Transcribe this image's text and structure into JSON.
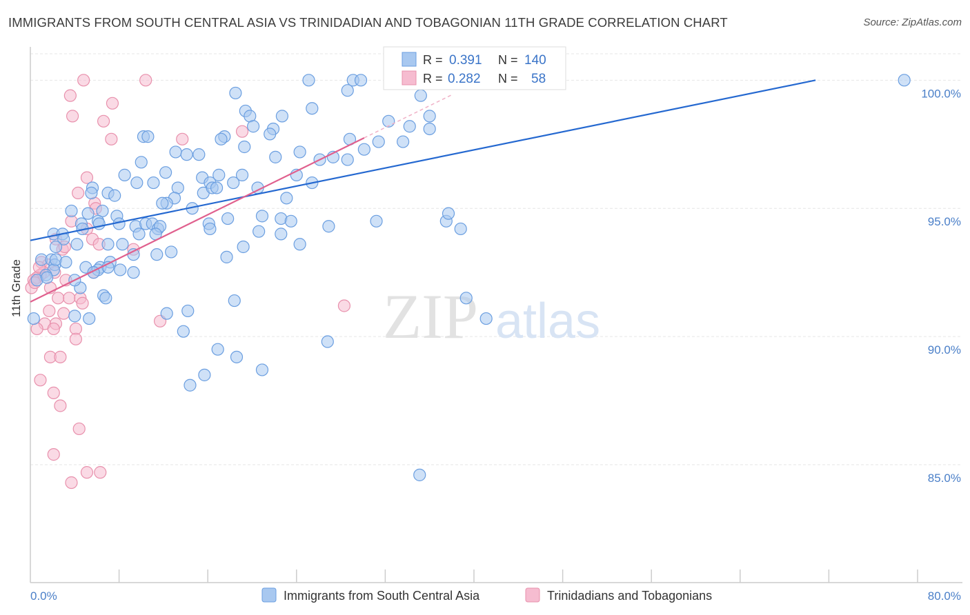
{
  "title": "IMMIGRANTS FROM SOUTH CENTRAL ASIA VS TRINIDADIAN AND TOBAGONIAN 11TH GRADE CORRELATION CHART",
  "source": "Source: ZipAtlas.com",
  "watermark": {
    "zip": "ZIP",
    "atlas": "atlas"
  },
  "colors": {
    "blue_fill": "#a8c8f0",
    "blue_stroke": "#6a9ee0",
    "blue_line": "#2468d0",
    "pink_fill": "#f6bcd0",
    "pink_stroke": "#e890ac",
    "pink_line": "#e0608e",
    "axis_label": "#4a7fc8",
    "grid": "#e6e6e6"
  },
  "legend_box": {
    "rows": [
      {
        "r_label": "R =",
        "r_value": "0.391",
        "n_label": "N =",
        "n_value": "140"
      },
      {
        "r_label": "R =",
        "r_value": "0.282",
        "n_label": "N =",
        "n_value": "58"
      }
    ]
  },
  "bottom_legend": {
    "items": [
      "Immigrants from South Central Asia",
      "Trinidadians and Tobagonians"
    ]
  },
  "chart_data": {
    "type": "scatter",
    "ylabel": "11th Grade",
    "xlim": [
      0,
      80
    ],
    "ylim": [
      80.4,
      101.3
    ],
    "x_tick_labels": {
      "left": "0.0%",
      "right": "80.0%"
    },
    "y_ticks": [
      {
        "value": 100,
        "label": "100.0%"
      },
      {
        "value": 95,
        "label": "95.0%"
      },
      {
        "value": 90,
        "label": "90.0%"
      },
      {
        "value": 85,
        "label": "85.0%"
      }
    ],
    "grid": true,
    "legend_placement": "top-center",
    "series": [
      {
        "name": "Immigrants from South Central Asia",
        "color": "#a8c8f0",
        "trend": {
          "x": [
            0,
            70.8
          ],
          "y": [
            93.75,
            100.0
          ]
        },
        "points": [
          [
            25.1,
            100
          ],
          [
            29.1,
            100
          ],
          [
            29.8,
            100
          ],
          [
            78.8,
            100
          ],
          [
            18.5,
            99.5
          ],
          [
            28.6,
            99.6
          ],
          [
            35.2,
            99.4
          ],
          [
            25.4,
            98.9
          ],
          [
            19.4,
            98.8
          ],
          [
            19.8,
            98.6
          ],
          [
            22.7,
            98.6
          ],
          [
            32.3,
            98.4
          ],
          [
            20.1,
            98.2
          ],
          [
            21.9,
            98.1
          ],
          [
            34.2,
            98.2
          ],
          [
            36.0,
            98.1
          ],
          [
            17.5,
            97.8
          ],
          [
            10.2,
            97.8
          ],
          [
            10.6,
            97.8
          ],
          [
            28.8,
            97.7
          ],
          [
            21.6,
            97.9
          ],
          [
            33.6,
            97.6
          ],
          [
            17.2,
            97.7
          ],
          [
            19.3,
            97.4
          ],
          [
            13.1,
            97.2
          ],
          [
            14.1,
            97.1
          ],
          [
            15.2,
            97.1
          ],
          [
            22.1,
            97.0
          ],
          [
            30.1,
            97.3
          ],
          [
            24.3,
            97.2
          ],
          [
            26.1,
            96.9
          ],
          [
            28.6,
            96.9
          ],
          [
            10.0,
            96.8
          ],
          [
            12.2,
            96.4
          ],
          [
            8.5,
            96.3
          ],
          [
            9.6,
            96.0
          ],
          [
            11.1,
            96.0
          ],
          [
            15.5,
            96.2
          ],
          [
            16.2,
            96.0
          ],
          [
            17.0,
            96.3
          ],
          [
            19.1,
            96.3
          ],
          [
            24.0,
            96.3
          ],
          [
            25.4,
            96.0
          ],
          [
            13.3,
            95.8
          ],
          [
            15.6,
            95.6
          ],
          [
            16.4,
            95.8
          ],
          [
            20.5,
            95.8
          ],
          [
            5.6,
            95.8
          ],
          [
            5.5,
            95.6
          ],
          [
            7.0,
            95.6
          ],
          [
            7.6,
            95.5
          ],
          [
            13.0,
            95.4
          ],
          [
            12.3,
            95.2
          ],
          [
            11.9,
            95.2
          ],
          [
            14.6,
            95.0
          ],
          [
            23.1,
            95.4
          ],
          [
            3.7,
            94.9
          ],
          [
            5.2,
            94.8
          ],
          [
            4.6,
            94.4
          ],
          [
            6.5,
            94.9
          ],
          [
            7.8,
            94.7
          ],
          [
            4.7,
            94.2
          ],
          [
            6.1,
            94.5
          ],
          [
            6.2,
            94.4
          ],
          [
            8.0,
            94.4
          ],
          [
            9.5,
            94.3
          ],
          [
            10.4,
            94.4
          ],
          [
            11.0,
            94.4
          ],
          [
            11.5,
            94.2
          ],
          [
            11.7,
            94.3
          ],
          [
            16.1,
            94.4
          ],
          [
            16.2,
            94.2
          ],
          [
            17.8,
            94.6
          ],
          [
            20.9,
            94.7
          ],
          [
            22.6,
            94.6
          ],
          [
            23.5,
            94.5
          ],
          [
            26.9,
            94.3
          ],
          [
            31.2,
            94.5
          ],
          [
            37.5,
            94.5
          ],
          [
            37.7,
            94.8
          ],
          [
            38.8,
            94.2
          ],
          [
            2.1,
            94.0
          ],
          [
            2.9,
            94.0
          ],
          [
            3.0,
            93.8
          ],
          [
            4.2,
            93.6
          ],
          [
            2.3,
            93.5
          ],
          [
            7.0,
            93.6
          ],
          [
            8.3,
            93.6
          ],
          [
            9.8,
            94.0
          ],
          [
            11.3,
            94.0
          ],
          [
            20.6,
            94.1
          ],
          [
            22.6,
            94.0
          ],
          [
            24.3,
            93.6
          ],
          [
            19.2,
            93.5
          ],
          [
            12.7,
            93.3
          ],
          [
            9.3,
            93.2
          ],
          [
            11.4,
            93.2
          ],
          [
            17.7,
            93.1
          ],
          [
            1.0,
            93.0
          ],
          [
            1.9,
            93.0
          ],
          [
            2.2,
            92.8
          ],
          [
            2.1,
            92.6
          ],
          [
            1.4,
            92.4
          ],
          [
            0.6,
            92.2
          ],
          [
            2.3,
            93.0
          ],
          [
            3.2,
            92.9
          ],
          [
            6.3,
            92.7
          ],
          [
            5.0,
            92.7
          ],
          [
            6.1,
            92.6
          ],
          [
            5.7,
            92.5
          ],
          [
            7.2,
            92.9
          ],
          [
            7.0,
            92.7
          ],
          [
            8.1,
            92.6
          ],
          [
            9.3,
            92.5
          ],
          [
            4.5,
            91.9
          ],
          [
            6.6,
            91.6
          ],
          [
            6.8,
            91.5
          ],
          [
            18.4,
            91.4
          ],
          [
            39.3,
            91.5
          ],
          [
            41.1,
            90.7
          ],
          [
            5.3,
            90.7
          ],
          [
            4.0,
            90.8
          ],
          [
            12.3,
            90.9
          ],
          [
            14.2,
            91.0
          ],
          [
            13.8,
            90.2
          ],
          [
            16.9,
            89.5
          ],
          [
            18.6,
            89.2
          ],
          [
            26.8,
            89.8
          ],
          [
            20.9,
            88.7
          ],
          [
            15.7,
            88.5
          ],
          [
            14.4,
            88.1
          ],
          [
            35.1,
            84.6
          ],
          [
            0.3,
            90.7
          ],
          [
            36.0,
            98.6
          ],
          [
            18.3,
            96.0
          ],
          [
            16.8,
            95.8
          ],
          [
            4.0,
            92.2
          ],
          [
            1.5,
            92.3
          ],
          [
            27.3,
            97.0
          ],
          [
            31.4,
            97.6
          ]
        ]
      },
      {
        "name": "Trinidadians and Tobagonians",
        "color": "#f6bcd0",
        "trend": {
          "x": [
            0,
            30.1
          ],
          "y": [
            91.35,
            97.75
          ]
        },
        "trend_ext": {
          "x": [
            30.1,
            38.1
          ],
          "y": [
            97.75,
            99.45
          ]
        },
        "points": [
          [
            4.8,
            100
          ],
          [
            10.4,
            100
          ],
          [
            3.6,
            99.4
          ],
          [
            7.4,
            99.1
          ],
          [
            3.8,
            98.6
          ],
          [
            6.6,
            98.4
          ],
          [
            19.1,
            98.0
          ],
          [
            7.3,
            97.7
          ],
          [
            13.7,
            97.7
          ],
          [
            5.1,
            96.2
          ],
          [
            4.3,
            95.6
          ],
          [
            5.8,
            95.2
          ],
          [
            5.9,
            95.0
          ],
          [
            3.7,
            94.5
          ],
          [
            5.1,
            94.2
          ],
          [
            2.3,
            93.8
          ],
          [
            5.6,
            93.8
          ],
          [
            6.2,
            93.6
          ],
          [
            2.9,
            93.4
          ],
          [
            3.1,
            93.5
          ],
          [
            9.3,
            93.4
          ],
          [
            1.0,
            92.9
          ],
          [
            1.6,
            92.8
          ],
          [
            1.2,
            92.5
          ],
          [
            0.9,
            92.4
          ],
          [
            2.2,
            92.5
          ],
          [
            5.7,
            92.5
          ],
          [
            0.6,
            92.3
          ],
          [
            0.3,
            92.2
          ],
          [
            3.2,
            92.2
          ],
          [
            1.8,
            91.9
          ],
          [
            2.5,
            91.5
          ],
          [
            3.5,
            91.5
          ],
          [
            4.5,
            91.5
          ],
          [
            4.7,
            91.3
          ],
          [
            1.7,
            91.0
          ],
          [
            3.0,
            90.9
          ],
          [
            1.3,
            90.5
          ],
          [
            2.3,
            90.5
          ],
          [
            0.6,
            90.3
          ],
          [
            2.1,
            90.3
          ],
          [
            4.1,
            90.3
          ],
          [
            4.1,
            89.9
          ],
          [
            11.7,
            90.6
          ],
          [
            28.3,
            91.2
          ],
          [
            1.8,
            89.2
          ],
          [
            2.7,
            89.2
          ],
          [
            0.9,
            88.3
          ],
          [
            2.1,
            87.8
          ],
          [
            2.7,
            87.3
          ],
          [
            4.4,
            86.4
          ],
          [
            2.1,
            85.4
          ],
          [
            5.1,
            84.7
          ],
          [
            6.3,
            84.7
          ],
          [
            3.7,
            84.3
          ],
          [
            0.1,
            91.9
          ],
          [
            0.4,
            92.1
          ],
          [
            0.8,
            92.7
          ]
        ]
      }
    ]
  }
}
